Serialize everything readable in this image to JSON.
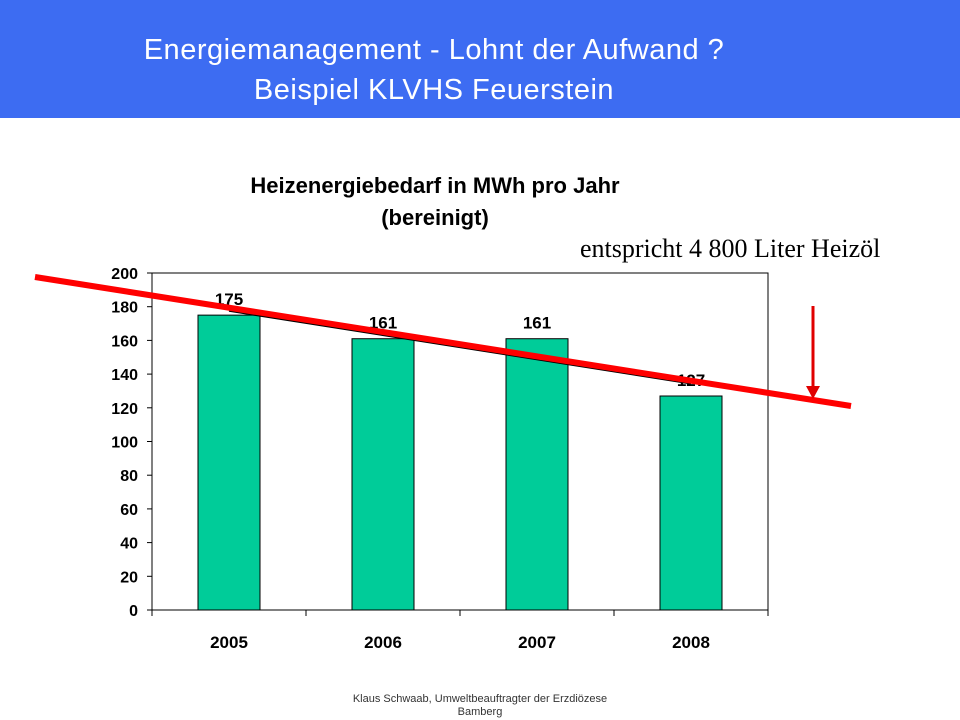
{
  "header": {
    "line1": "Energiemanagement  - Lohnt der Aufwand ?",
    "line2": "Beispiel KLVHS Feuerstein"
  },
  "chart_data": {
    "type": "bar",
    "title_lines": [
      "Heizenergiebedarf in MWh pro Jahr",
      "(bereinigt)"
    ],
    "categories": [
      "2005",
      "2006",
      "2007",
      "2008"
    ],
    "values": [
      175,
      161,
      161,
      127
    ],
    "data_labels": [
      "175",
      "161",
      "161",
      "127"
    ],
    "ylim": [
      0,
      200
    ],
    "yticks": [
      0,
      20,
      40,
      60,
      80,
      100,
      120,
      140,
      160,
      180,
      200
    ],
    "xlabel": "",
    "ylabel": "",
    "grid": false,
    "legend": "none",
    "trendline": true,
    "bar_color": "#00cc99",
    "trend_color": "#ff0000"
  },
  "annotation": {
    "text": "entspricht 4 800 Liter Heizöl",
    "arrow_color": "#e00000"
  },
  "footer": {
    "line1": "Klaus Schwaab, Umweltbeauftragter der Erzdiözese",
    "line2": "Bamberg"
  },
  "colors": {
    "header_bg": "#3d6cf2",
    "header_text": "#ffffff"
  }
}
